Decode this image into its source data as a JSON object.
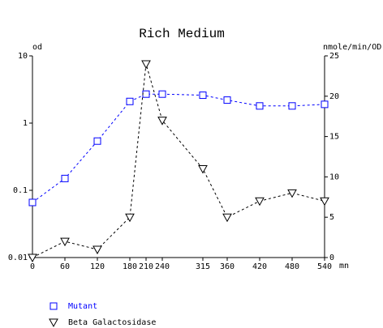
{
  "chart_data": {
    "type": "line",
    "title": "Rich Medium",
    "ylabel": "od",
    "y2label": "nmole/min/OD",
    "xlabel": "mn",
    "x": [
      0,
      60,
      120,
      180,
      210,
      240,
      315,
      360,
      420,
      480,
      540
    ],
    "xlim": [
      0,
      540
    ],
    "xticks": [
      0,
      60,
      120,
      180,
      210,
      240,
      315,
      360,
      420,
      480,
      540
    ],
    "ylim": [
      0.01,
      10
    ],
    "yticks": [
      0.01,
      0.1,
      1,
      10
    ],
    "ylog": true,
    "y2lim": [
      0,
      25
    ],
    "y2ticks": [
      0,
      5,
      10,
      15,
      20,
      25
    ],
    "legend": "bottom-left",
    "series": [
      {
        "name": "Mutant",
        "color": "#0000ff",
        "marker": "square",
        "axis": "y",
        "values": [
          0.066,
          0.15,
          0.54,
          2.1,
          2.7,
          2.7,
          2.6,
          2.2,
          1.8,
          1.8,
          1.9
        ]
      },
      {
        "name": "Beta Galactosidase",
        "color": "#000000",
        "marker": "triangle-down",
        "axis": "y2",
        "values": [
          0,
          2,
          1,
          5,
          24,
          17,
          11,
          5,
          7,
          8,
          7
        ]
      }
    ]
  }
}
